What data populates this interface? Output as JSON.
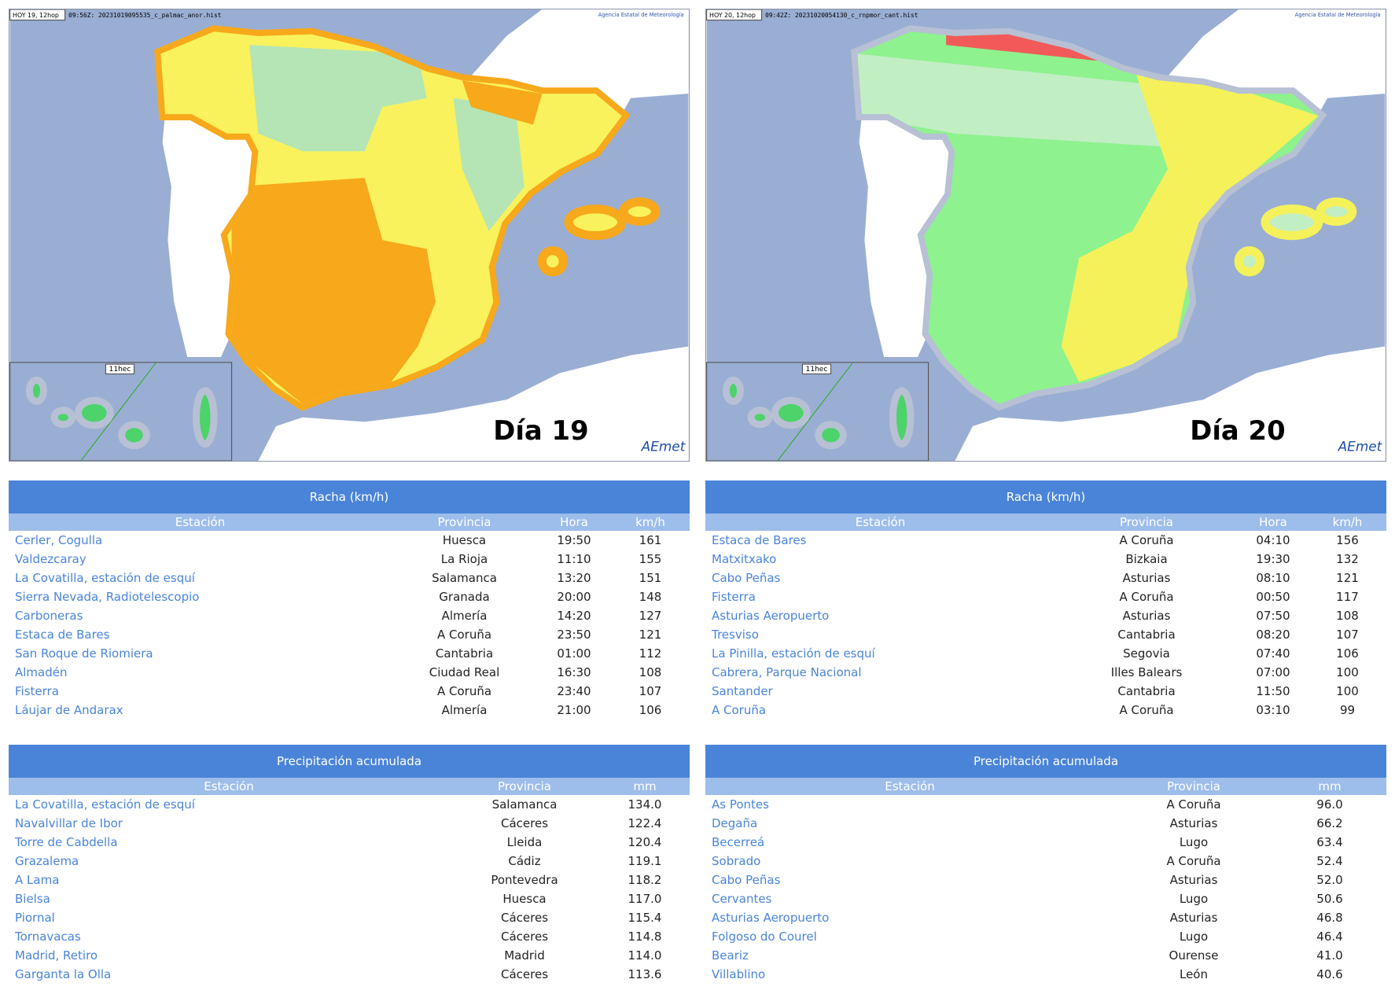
{
  "panels": [
    {
      "map": {
        "label": "HOY 19, 12hop",
        "file": "09:56Z: 20231019095535_c_palmac_anor.hist",
        "agency": "Agencia Estatal de Meteorología",
        "inset_label": "11hec",
        "day": "Día 19",
        "logo": "AEmet"
      },
      "wind": {
        "title": "Racha (km/h)",
        "columns": [
          "Estación",
          "Provincia",
          "Hora",
          "km/h"
        ],
        "rows": [
          [
            "Cerler, Cogulla",
            "Huesca",
            "19:50",
            "161"
          ],
          [
            "Valdezcaray",
            "La Rioja",
            "11:10",
            "155"
          ],
          [
            "La Covatilla, estación de esquí",
            "Salamanca",
            "13:20",
            "151"
          ],
          [
            "Sierra Nevada, Radiotelescopio",
            "Granada",
            "20:00",
            "148"
          ],
          [
            "Carboneras",
            "Almería",
            "14:20",
            "127"
          ],
          [
            "Estaca de Bares",
            "A Coruña",
            "23:50",
            "121"
          ],
          [
            "San Roque de Riomiera",
            "Cantabria",
            "01:00",
            "112"
          ],
          [
            "Almadén",
            "Ciudad Real",
            "16:30",
            "108"
          ],
          [
            "Fisterra",
            "A Coruña",
            "23:40",
            "107"
          ],
          [
            "Láujar de Andarax",
            "Almería",
            "21:00",
            "106"
          ]
        ]
      },
      "rain": {
        "title": "Precipitación acumulada",
        "columns": [
          "Estación",
          "Provincia",
          "mm"
        ],
        "rows": [
          [
            "La Covatilla, estación de esquí",
            "Salamanca",
            "134.0"
          ],
          [
            "Navalvillar de Ibor",
            "Cáceres",
            "122.4"
          ],
          [
            "Torre de Cabdella",
            "Lleida",
            "120.4"
          ],
          [
            "Grazalema",
            "Cádiz",
            "119.1"
          ],
          [
            "A Lama",
            "Pontevedra",
            "118.2"
          ],
          [
            "Bielsa",
            "Huesca",
            "117.0"
          ],
          [
            "Piornal",
            "Cáceres",
            "115.4"
          ],
          [
            "Tornavacas",
            "Cáceres",
            "114.8"
          ],
          [
            "Madrid, Retiro",
            "Madrid",
            "114.0"
          ],
          [
            "Garganta la Olla",
            "Cáceres",
            "113.6"
          ]
        ]
      }
    },
    {
      "map": {
        "label": "HOY 20, 12hop",
        "file": "09:42Z: 20231020054130_c_rnpmor_cant.hist",
        "agency": "Agencia Estatal de Meteorología",
        "inset_label": "11hec",
        "day": "Día 20",
        "logo": "AEmet"
      },
      "wind": {
        "title": "Racha (km/h)",
        "columns": [
          "Estación",
          "Provincia",
          "Hora",
          "km/h"
        ],
        "rows": [
          [
            "Estaca de Bares",
            "A Coruña",
            "04:10",
            "156"
          ],
          [
            "Matxitxako",
            "Bizkaia",
            "19:30",
            "132"
          ],
          [
            "Cabo Peñas",
            "Asturias",
            "08:10",
            "121"
          ],
          [
            "Fisterra",
            "A Coruña",
            "00:50",
            "117"
          ],
          [
            "Asturias Aeropuerto",
            "Asturias",
            "07:50",
            "108"
          ],
          [
            "Tresviso",
            "Cantabria",
            "08:20",
            "107"
          ],
          [
            "La Pinilla, estación de esquí",
            "Segovia",
            "07:40",
            "106"
          ],
          [
            "Cabrera, Parque Nacional",
            "Illes Balears",
            "07:00",
            "100"
          ],
          [
            "Santander",
            "Cantabria",
            "11:50",
            "100"
          ],
          [
            "A Coruña",
            "A Coruña",
            "03:10",
            "99"
          ]
        ]
      },
      "rain": {
        "title": "Precipitación acumulada",
        "columns": [
          "Estación",
          "Provincia",
          "mm"
        ],
        "rows": [
          [
            "As Pontes",
            "A Coruña",
            "96.0"
          ],
          [
            "Degaña",
            "Asturias",
            "66.2"
          ],
          [
            "Becerreá",
            "Lugo",
            "63.4"
          ],
          [
            "Sobrado",
            "A Coruña",
            "52.4"
          ],
          [
            "Cabo Peñas",
            "Asturias",
            "52.0"
          ],
          [
            "Cervantes",
            "Lugo",
            "50.6"
          ],
          [
            "Asturias Aeropuerto",
            "Asturias",
            "46.8"
          ],
          [
            "Folgoso do Courel",
            "Lugo",
            "46.4"
          ],
          [
            "Beariz",
            "Ourense",
            "41.0"
          ],
          [
            "Villablino",
            "León",
            "40.6"
          ]
        ]
      }
    }
  ]
}
